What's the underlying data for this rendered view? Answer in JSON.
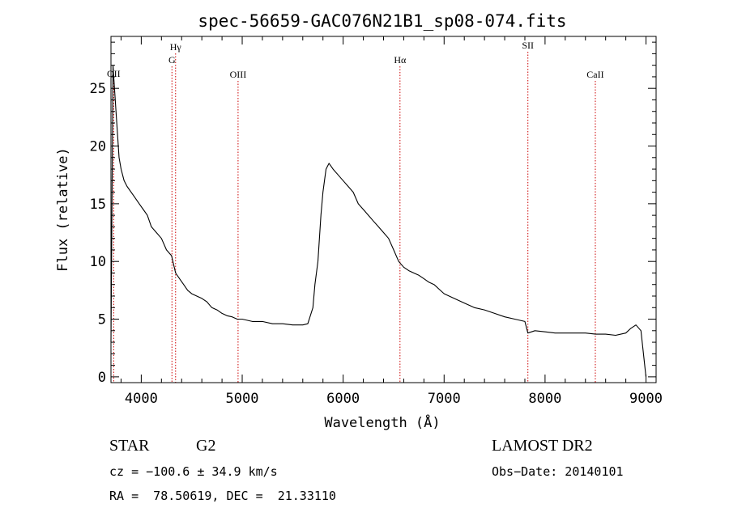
{
  "chart_data": {
    "type": "line",
    "title": "spec-56659-GAC076N21B1_sp08-074.fits",
    "xlabel": "Wavelength (Å)",
    "ylabel": "Flux (relative)",
    "xlim": [
      3700,
      9100
    ],
    "ylim": [
      -0.5,
      29.5
    ],
    "xticks": [
      4000,
      5000,
      6000,
      7000,
      8000,
      9000
    ],
    "yticks": [
      0,
      5,
      10,
      15,
      20,
      25
    ],
    "grid": false,
    "series": [
      {
        "color": "#000000",
        "x": [
          3700,
          3720,
          3750,
          3780,
          3800,
          3830,
          3860,
          3900,
          3940,
          3980,
          4020,
          4060,
          4100,
          4150,
          4200,
          4250,
          4300,
          4340,
          4380,
          4420,
          4460,
          4500,
          4550,
          4600,
          4650,
          4700,
          4750,
          4800,
          4850,
          4900,
          4950,
          5000,
          5100,
          5200,
          5300,
          5400,
          5500,
          5600,
          5650,
          5700,
          5720,
          5750,
          5780,
          5800,
          5830,
          5860,
          5900,
          5950,
          6000,
          6050,
          6100,
          6150,
          6200,
          6250,
          6300,
          6350,
          6400,
          6450,
          6500,
          6550,
          6600,
          6650,
          6700,
          6750,
          6800,
          6850,
          6900,
          6950,
          7000,
          7100,
          7200,
          7300,
          7400,
          7500,
          7600,
          7700,
          7800,
          7830,
          7900,
          8000,
          8100,
          8200,
          8300,
          8400,
          8500,
          8600,
          8700,
          8800,
          8850,
          8900,
          8950,
          9000
        ],
        "y": [
          3,
          27,
          23,
          19,
          18,
          17,
          16.5,
          16,
          15.5,
          15,
          14.5,
          14,
          13,
          12.5,
          12,
          11,
          10.5,
          9,
          8.5,
          8,
          7.5,
          7.2,
          7,
          6.8,
          6.5,
          6,
          5.8,
          5.5,
          5.3,
          5.2,
          5,
          5,
          4.8,
          4.8,
          4.6,
          4.6,
          4.5,
          4.5,
          4.6,
          6,
          8,
          10,
          14,
          16,
          18,
          18.5,
          18,
          17.5,
          17,
          16.5,
          16,
          15,
          14.5,
          14,
          13.5,
          13,
          12.5,
          12,
          11,
          10,
          9.5,
          9.2,
          9,
          8.8,
          8.5,
          8.2,
          8,
          7.6,
          7.2,
          6.8,
          6.4,
          6,
          5.8,
          5.5,
          5.2,
          5,
          4.8,
          3.8,
          4,
          3.9,
          3.8,
          3.8,
          3.8,
          3.8,
          3.7,
          3.7,
          3.6,
          3.8,
          4.2,
          4.5,
          4,
          0
        ]
      }
    ],
    "lines": [
      {
        "label": "OII",
        "x": 3727
      },
      {
        "label": "Hγ",
        "x": 4340
      },
      {
        "label": "G",
        "x": 4304
      },
      {
        "label": "OIII",
        "x": 4959
      },
      {
        "label": "Hα",
        "x": 6563
      },
      {
        "label": "SII",
        "x": 7830
      },
      {
        "label": "CaII",
        "x": 8498
      }
    ],
    "line_color": "#cc0000"
  },
  "info": {
    "object_type": "STAR",
    "subclass": "G2",
    "release": "LAMOST DR2",
    "cz": "cz = −100.6 ± 34.9 km/s",
    "obs_date": "Obs−Date: 20140101",
    "radec": "RA =  78.50619, DEC =  21.33110"
  }
}
